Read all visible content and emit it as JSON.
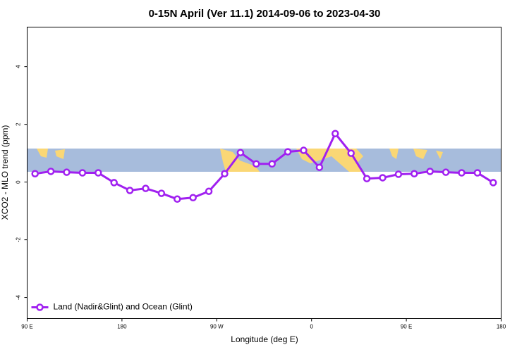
{
  "chart_data": {
    "type": "line",
    "title": "0-15N April (Ver 11.1)   2014-09-06 to 2023-04-30",
    "x_label": "Longitude (deg E)",
    "y_label": "XCO2 - MLO trend (ppm)",
    "x": [
      97.5,
      112.5,
      127.5,
      142.5,
      157.5,
      172.5,
      187.5,
      202.5,
      217.5,
      232.5,
      247.5,
      262.5,
      277.5,
      292.5,
      307.5,
      322.5,
      337.5,
      352.5,
      367.5,
      382.5,
      397.5,
      412.5,
      427.5,
      442.5,
      457.5,
      472.5,
      487.5,
      502.5,
      517.5,
      532.5
    ],
    "series": [
      {
        "name": "Land (Nadir&Glint) and Ocean (Glint)",
        "color": "#a020f0",
        "values": [
          0.29,
          0.37,
          0.34,
          0.32,
          0.32,
          -0.02,
          -0.29,
          -0.22,
          -0.39,
          -0.59,
          -0.54,
          -0.32,
          0.29,
          1.02,
          0.63,
          0.63,
          1.05,
          1.1,
          0.51,
          1.68,
          1.0,
          0.12,
          0.15,
          0.27,
          0.29,
          0.37,
          0.34,
          0.32,
          0.32,
          -0.02
        ]
      }
    ],
    "xlim": [
      90,
      540
    ],
    "xticks": [
      {
        "value": 90,
        "label": "90 E"
      },
      180,
      {
        "value": 270,
        "label": "90 W"
      },
      {
        "value": 360,
        "label": "0"
      },
      {
        "value": 450,
        "label": "90 E"
      },
      {
        "value": 540,
        "label": "180"
      }
    ],
    "ylim": [
      -4.73,
      5.37
    ],
    "yticks": [
      -4,
      -2,
      0,
      2,
      4
    ],
    "legend": "bottom-left"
  }
}
